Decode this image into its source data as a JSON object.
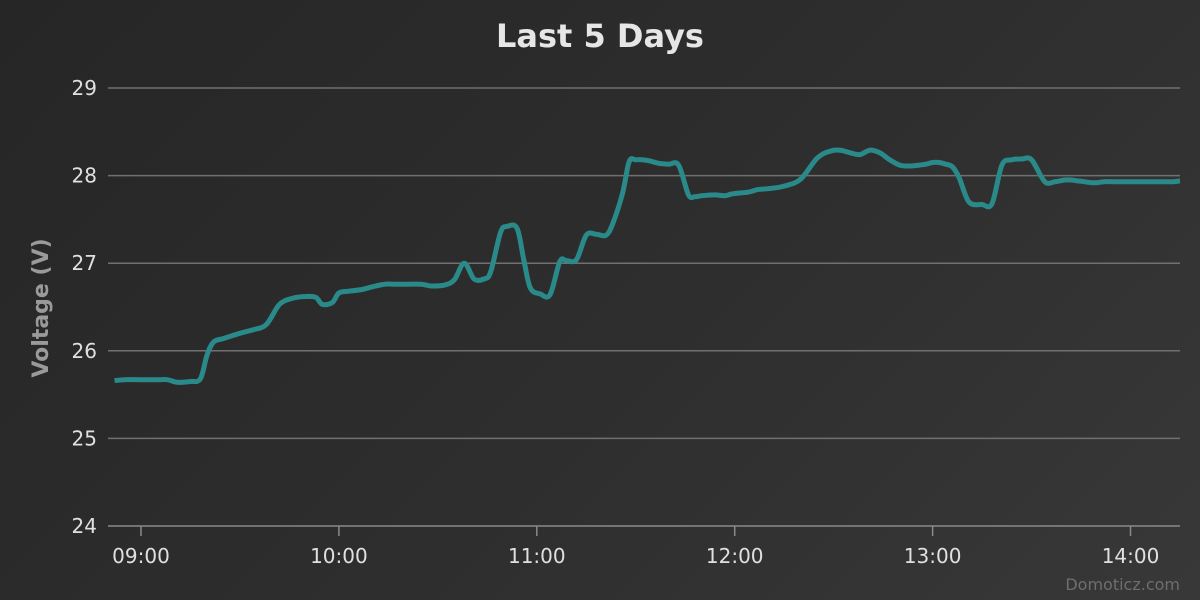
{
  "chart_data": {
    "type": "line",
    "title": "Last 5 Days",
    "ylabel": "Voltage (V)",
    "xlabel": "",
    "ylim": [
      24,
      29
    ],
    "yticks": [
      "24",
      "25",
      "26",
      "27",
      "28",
      "29"
    ],
    "x_range": [
      "08:50",
      "14:15"
    ],
    "xticks": [
      "09:00",
      "10:00",
      "11:00",
      "12:00",
      "13:00",
      "14:00"
    ],
    "grid": true,
    "series": [
      {
        "color": "#2a8a8a",
        "x": [
          "08:52",
          "08:55",
          "09:00",
          "09:05",
          "09:08",
          "09:11",
          "09:15",
          "09:18",
          "09:20",
          "09:22",
          "09:25",
          "09:30",
          "09:34",
          "09:38",
          "09:42",
          "09:46",
          "09:50",
          "09:53",
          "09:55",
          "09:58",
          "10:00",
          "10:03",
          "10:07",
          "10:10",
          "10:14",
          "10:17",
          "10:21",
          "10:25",
          "10:28",
          "10:32",
          "10:35",
          "10:38",
          "10:41",
          "10:44",
          "10:46",
          "10:49",
          "10:51",
          "10:54",
          "10:56",
          "10:58",
          "11:01",
          "11:04",
          "11:07",
          "11:09",
          "11:12",
          "11:15",
          "11:18",
          "11:21",
          "11:23",
          "11:26",
          "11:28",
          "11:30",
          "11:32",
          "11:34",
          "11:37",
          "11:40",
          "11:43",
          "11:46",
          "11:48",
          "11:50",
          "11:54",
          "11:57",
          "11:59",
          "12:01",
          "12:04",
          "12:07",
          "12:10",
          "12:15",
          "12:20",
          "12:25",
          "12:29",
          "12:32",
          "12:35",
          "12:38",
          "12:41",
          "12:44",
          "12:47",
          "12:50",
          "12:53",
          "12:56",
          "12:58",
          "13:00",
          "13:02",
          "13:04",
          "13:06",
          "13:08",
          "13:11",
          "13:15",
          "13:18",
          "13:21",
          "13:24",
          "13:27",
          "13:30",
          "13:34",
          "13:37",
          "13:40",
          "13:42",
          "13:44",
          "13:46",
          "13:48",
          "13:50",
          "13:52",
          "13:55",
          "13:58",
          "14:01",
          "14:04",
          "14:06",
          "14:08",
          "14:10",
          "14:13",
          "14:15"
        ],
        "values": [
          25.66,
          25.67,
          25.67,
          25.67,
          25.67,
          25.64,
          25.65,
          25.68,
          25.95,
          26.1,
          26.14,
          26.2,
          26.24,
          26.3,
          26.53,
          26.6,
          26.62,
          26.61,
          26.53,
          26.55,
          26.66,
          26.68,
          26.7,
          26.73,
          26.76,
          26.76,
          26.76,
          26.76,
          26.74,
          26.75,
          26.81,
          27.0,
          26.82,
          26.82,
          26.9,
          27.35,
          27.42,
          27.4,
          27.05,
          26.72,
          26.65,
          26.64,
          27.02,
          27.03,
          27.04,
          27.32,
          27.33,
          27.32,
          27.45,
          27.8,
          28.16,
          28.18,
          28.18,
          28.17,
          28.14,
          28.13,
          28.12,
          27.78,
          27.76,
          27.77,
          27.78,
          27.77,
          27.79,
          27.8,
          27.81,
          27.84,
          27.85,
          27.88,
          27.96,
          28.2,
          28.28,
          28.29,
          28.26,
          28.24,
          28.29,
          28.26,
          28.18,
          28.12,
          28.11,
          28.12,
          28.13,
          28.15,
          28.15,
          28.13,
          28.1,
          27.98,
          27.7,
          27.67,
          27.68,
          28.12,
          28.18,
          28.19,
          28.18,
          27.93,
          27.93,
          27.95,
          27.95,
          27.94,
          27.93,
          27.92,
          27.92,
          27.93,
          27.93,
          27.93,
          27.93,
          27.93,
          27.93,
          27.93,
          27.93,
          27.93,
          27.94
        ]
      }
    ],
    "credit": "Domoticz.com"
  }
}
